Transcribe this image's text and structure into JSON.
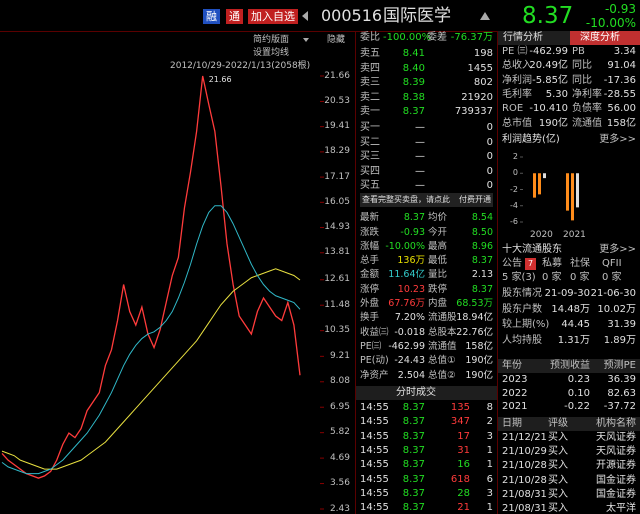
{
  "header": {
    "buttons": [
      "融",
      "通",
      "加入自选"
    ],
    "code": "000516",
    "name": "国际医学",
    "price": "8.37",
    "change": "-0.93",
    "change_pct": "-10.00%"
  },
  "toolbar": [
    "简约版面",
    "隐藏",
    "设置均线"
  ],
  "chart_data": [
    {
      "type": "line",
      "subtitle": "2012/10/29-2022/1/13(2058根)",
      "peak_label": 21.66,
      "ylim": [
        2.43,
        21.66
      ],
      "yticks": [
        21.66,
        20.53,
        19.41,
        18.29,
        17.17,
        16.05,
        14.93,
        13.81,
        12.61,
        11.48,
        10.35,
        9.21,
        8.08,
        6.95,
        5.82,
        4.69,
        3.56,
        2.43
      ],
      "series": [
        {
          "color": "#ff3b3b",
          "values": [
            4.9,
            4.6,
            4.4,
            4.2,
            4.0,
            3.9,
            3.8,
            3.9,
            4.1,
            4.6,
            5.3,
            5.8,
            5.6,
            6.0,
            6.8,
            7.2,
            7.6,
            8.8,
            9.5,
            10.8,
            12.4,
            11.2,
            10.6,
            11.4,
            10.2,
            9.6,
            10.4,
            11.6,
            12.8,
            13.6,
            15.8,
            17.4,
            19.2,
            21.66,
            20.4,
            19.2,
            16.8,
            14.2,
            12.4,
            11.0,
            10.6,
            10.2,
            11.2,
            11.8,
            11.4,
            11.0,
            10.8,
            11.6,
            10.6,
            8.37
          ]
        },
        {
          "color": "#e8e040",
          "values": [
            5.0,
            4.9,
            4.8,
            4.6,
            4.5,
            4.4,
            4.3,
            4.2,
            4.2,
            4.2,
            4.3,
            4.4,
            4.5,
            4.6,
            4.8,
            5.0,
            5.2,
            5.4,
            5.7,
            6.0,
            6.3,
            6.6,
            6.9,
            7.2,
            7.5,
            7.8,
            8.1,
            8.4,
            8.7,
            9.0,
            9.3,
            9.6,
            9.9,
            10.3,
            10.7,
            11.1,
            11.5,
            11.8,
            12.1,
            12.3,
            12.5,
            12.7,
            12.8,
            12.9,
            13.0,
            13.1,
            13.0,
            12.9,
            12.8,
            12.6
          ]
        },
        {
          "color": "#30b8c8",
          "values": [
            4.5,
            4.3,
            4.2,
            4.1,
            4.0,
            4.0,
            4.0,
            4.1,
            4.2,
            4.4,
            4.6,
            4.9,
            5.2,
            5.5,
            5.8,
            6.2,
            6.6,
            7.1,
            7.6,
            8.2,
            8.8,
            9.3,
            9.7,
            10.0,
            10.2,
            10.3,
            10.5,
            10.8,
            11.2,
            11.8,
            12.5,
            13.3,
            14.2,
            15.0,
            15.6,
            15.9,
            15.9,
            15.6,
            15.1,
            14.5,
            13.9,
            13.3,
            12.8,
            12.4,
            12.1,
            11.9,
            11.8,
            11.7,
            11.6,
            11.3
          ]
        }
      ]
    },
    {
      "type": "bar",
      "title": "利润趋势(亿)",
      "more": "更多>>",
      "categories": [
        "2020",
        "2021"
      ],
      "ylim": [
        -6,
        2
      ],
      "yticks": [
        2,
        0,
        -2,
        -4,
        -6
      ],
      "series": [
        {
          "color": "#ff8c1a",
          "values": [
            -3.0,
            -4.6
          ]
        },
        {
          "color": "#ff8c1a",
          "values": [
            -2.6,
            -5.8
          ]
        },
        {
          "color": "#dddddd",
          "values": [
            -0.6,
            -4.2
          ]
        }
      ]
    }
  ],
  "order_book": {
    "summary": [
      "委比",
      "-100.00%",
      "委差",
      "-76.37万"
    ],
    "asks": [
      [
        "卖五",
        "8.41",
        "198"
      ],
      [
        "卖四",
        "8.40",
        "1455"
      ],
      [
        "卖三",
        "8.39",
        "802"
      ],
      [
        "卖二",
        "8.38",
        "21920"
      ],
      [
        "卖一",
        "8.37",
        "739337"
      ]
    ],
    "bids": [
      [
        "买一",
        "—",
        "0"
      ],
      [
        "买二",
        "—",
        "0"
      ],
      [
        "买三",
        "—",
        "0"
      ],
      [
        "买四",
        "—",
        "0"
      ],
      [
        "买五",
        "—",
        "0"
      ]
    ],
    "notice": "查看完整买卖盘，请点此",
    "notice_link": "付费开通"
  },
  "stats": [
    [
      "最新",
      "8.37",
      "均价",
      "8.54"
    ],
    [
      "涨跌",
      "-0.93",
      "今开",
      "8.50"
    ],
    [
      "涨幅",
      "-10.00%",
      "最高",
      "8.96"
    ],
    [
      "总手",
      "136万",
      "最低",
      "8.37"
    ],
    [
      "金额",
      "11.64亿",
      "量比",
      "2.13"
    ],
    [
      "涨停",
      "10.23",
      "跌停",
      "8.37"
    ],
    [
      "外盘",
      "67.76万",
      "内盘",
      "68.53万"
    ],
    [
      "换手",
      "7.20%",
      "流通股",
      "18.94亿"
    ],
    [
      "收益㈢",
      "-0.018",
      "总股本",
      "22.76亿"
    ],
    [
      "PE㈢",
      "-462.99",
      "流通值",
      "158亿"
    ],
    [
      "PE(动)",
      "-24.43",
      "总值①",
      "190亿"
    ],
    [
      "净资产",
      "2.504",
      "总值②",
      "190亿"
    ]
  ],
  "trades": {
    "title": "分时成交",
    "rows": [
      [
        "14:55",
        "8.37",
        "135",
        "8"
      ],
      [
        "14:55",
        "8.37",
        "347",
        "2"
      ],
      [
        "14:55",
        "8.37",
        "17",
        "3"
      ],
      [
        "14:55",
        "8.37",
        "31",
        "1"
      ],
      [
        "14:55",
        "8.37",
        "16",
        "1"
      ],
      [
        "14:55",
        "8.37",
        "618",
        "6"
      ],
      [
        "14:55",
        "8.37",
        "28",
        "3"
      ],
      [
        "14:55",
        "8.37",
        "21",
        "1"
      ]
    ]
  },
  "fundamentals": {
    "tabs": [
      "行情分析",
      "深度分析"
    ],
    "rows": [
      [
        "PE ㈢",
        "-462.99",
        "PB",
        "3.34"
      ],
      [
        "总收入",
        "20.49亿",
        "同比",
        "91.04"
      ],
      [
        "净利润",
        "-5.85亿",
        "同比",
        "-17.36"
      ],
      [
        "毛利率",
        "5.30",
        "净利率",
        "-28.55"
      ],
      [
        "ROE",
        "-10.410",
        "负债率",
        "56.00"
      ],
      [
        "总市值",
        "190亿",
        "流通值",
        "158亿"
      ]
    ]
  },
  "holders": {
    "title": "十大流通股东",
    "more": "更多>>",
    "tabs": [
      "公告",
      "私募",
      "社保",
      "QFII"
    ],
    "badge": "7",
    "counts": [
      "5 家(3)",
      "0 家",
      "0 家",
      "0 家"
    ],
    "rows": [
      [
        "股东情况",
        "21-09-30",
        "21-06-30"
      ],
      [
        "股东户数",
        "14.48万",
        "10.02万"
      ],
      [
        "较上期(%)",
        "44.45",
        "31.39"
      ],
      [
        "人均持股",
        "1.31万",
        "1.89万"
      ]
    ]
  },
  "forecast": {
    "header": [
      "年份",
      "预测收益",
      "预测PE"
    ],
    "rows": [
      [
        "2023",
        "0.23",
        "36.39"
      ],
      [
        "2022",
        "0.10",
        "82.63"
      ],
      [
        "2021",
        "-0.22",
        "-37.72"
      ]
    ]
  },
  "ratings": {
    "header": [
      "日期",
      "评级",
      "机构名称"
    ],
    "rows": [
      [
        "21/12/21",
        "买入",
        "天风证券"
      ],
      [
        "21/10/29",
        "买入",
        "天风证券"
      ],
      [
        "21/10/28",
        "买入",
        "开源证券"
      ],
      [
        "21/10/28",
        "买入",
        "国金证券"
      ],
      [
        "21/08/31",
        "买入",
        "国金证券"
      ],
      [
        "21/08/31",
        "买入",
        "太平洋"
      ]
    ]
  }
}
